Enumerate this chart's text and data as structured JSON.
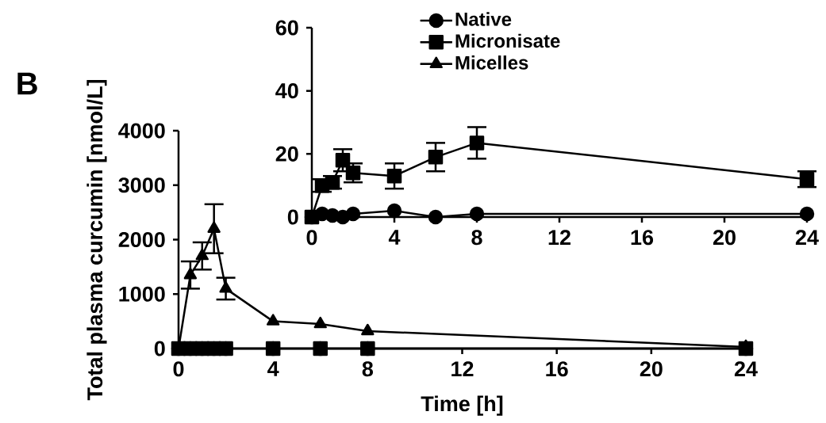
{
  "chart_data": [
    {
      "type": "line",
      "xlabel": "Time [h]",
      "ylabel": "Total plasma curcumin [nmol/L]",
      "annotations": [
        "B"
      ],
      "x": [
        0,
        0.5,
        1,
        1.5,
        2,
        4,
        6,
        8,
        24
      ],
      "xlim": [
        0,
        24
      ],
      "xticks": [
        0,
        4,
        8,
        12,
        16,
        20,
        24
      ],
      "ylim": [
        0,
        4000
      ],
      "yticks": [
        0,
        1000,
        2000,
        3000,
        4000
      ],
      "legend": "top right",
      "grid": false,
      "line_style": "solid",
      "series": [
        {
          "name": "Native",
          "color": "#000000",
          "marker": "circle",
          "values": [
            0,
            0,
            0,
            0,
            0,
            0,
            0,
            0,
            0
          ]
        },
        {
          "name": "Micronisate",
          "color": "#000000",
          "marker": "square",
          "values": [
            0,
            0,
            0,
            0,
            0,
            0,
            0,
            0,
            0
          ]
        },
        {
          "name": "Micelles",
          "color": "#000000",
          "marker": "triangle",
          "values": [
            0,
            1350,
            1700,
            2200,
            1100,
            500,
            450,
            320,
            30
          ],
          "errors": [
            null,
            250,
            250,
            450,
            200,
            null,
            null,
            null,
            null
          ]
        }
      ]
    },
    {
      "type": "line",
      "x": [
        0,
        0.5,
        1,
        1.5,
        2,
        4,
        6,
        8,
        24
      ],
      "xlim": [
        0,
        24
      ],
      "xticks": [
        0,
        4,
        8,
        12,
        16,
        20,
        24
      ],
      "ylim": [
        0,
        60
      ],
      "yticks": [
        0,
        20,
        40,
        60
      ],
      "grid": false,
      "line_style": "solid",
      "series": [
        {
          "color": "#000000",
          "marker": "circle",
          "values": [
            0,
            1,
            0.5,
            0,
            1,
            2,
            0,
            1,
            1
          ]
        },
        {
          "color": "#000000",
          "marker": "square",
          "values": [
            0,
            10,
            11,
            18,
            14,
            13,
            19,
            23.5,
            12
          ],
          "errors": [
            null,
            2,
            2,
            3.5,
            3,
            4,
            4.5,
            5,
            2.5
          ]
        }
      ]
    }
  ]
}
